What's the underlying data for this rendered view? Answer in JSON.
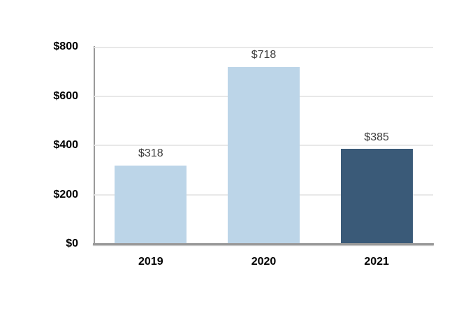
{
  "chart_data": {
    "type": "bar",
    "title": "",
    "xlabel": "",
    "ylabel": "",
    "categories": [
      "2019",
      "2020",
      "2021"
    ],
    "values": [
      318,
      718,
      385
    ],
    "value_labels": [
      "$318",
      "$718",
      "$385"
    ],
    "bar_colors": [
      "#BCD5E8",
      "#BCD5E8",
      "#3A5A78"
    ],
    "ylim": [
      0,
      800
    ],
    "yticks": [
      0,
      200,
      400,
      600,
      800
    ],
    "ytick_labels": [
      "$0",
      "$200",
      "$400",
      "$600",
      "$800"
    ],
    "grid": true,
    "legend_position": "none"
  },
  "colors": {
    "background": "#FFFFFF",
    "bar_light_blue": "#BCD5E8",
    "bar_dark_blue": "#3A5A78",
    "gridline": "#E8E8E8",
    "axis_line": "#9A9A9A",
    "value_label_text": "#3C3C3C",
    "tick_label_text": "#000000"
  }
}
